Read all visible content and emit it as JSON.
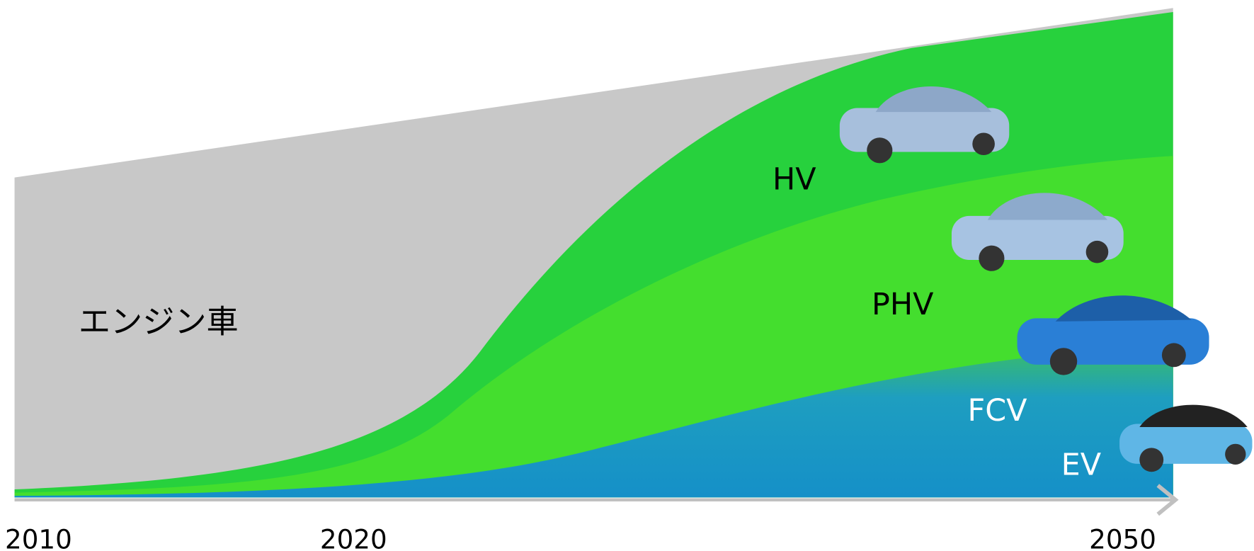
{
  "regions": [
    {
      "label": "エンジン車"
    },
    {
      "label": "HV"
    },
    {
      "label": "PHV"
    },
    {
      "label": "FCV"
    },
    {
      "label": "EV"
    }
  ],
  "axis": {
    "ticks": [
      "2010",
      "2020",
      "2050"
    ]
  }
}
